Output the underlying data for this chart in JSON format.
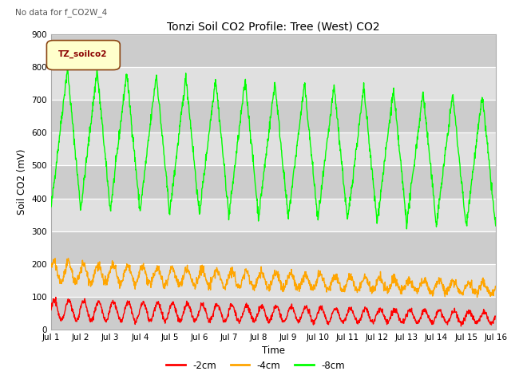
{
  "title": "Tonzi Soil CO2 Profile: Tree (West) CO2",
  "subtitle": "No data for f_CO2W_4",
  "xlabel": "Time",
  "ylabel": "Soil CO2 (mV)",
  "ylim": [
    0,
    900
  ],
  "xlim": [
    0,
    15
  ],
  "xtick_labels": [
    "Jul 1",
    "Jul 2",
    "Jul 3",
    "Jul 4",
    "Jul 5",
    "Jul 6",
    "Jul 7",
    "Jul 8",
    "Jul 9",
    "Jul 10",
    "Jul 11",
    "Jul 12",
    "Jul 13",
    "Jul 14",
    "Jul 15",
    "Jul 16"
  ],
  "ytick_values": [
    0,
    100,
    200,
    300,
    400,
    500,
    600,
    700,
    800,
    900
  ],
  "legend_label": "TZ_soilco2",
  "legend_entries": [
    "-2cm",
    "-4cm",
    "-8cm"
  ],
  "legend_colors": [
    "#ff0000",
    "#ffa500",
    "#00ff00"
  ],
  "color_8cm": "#00ff00",
  "color_4cm": "#ffa500",
  "color_2cm": "#ff0000",
  "n_days": 15,
  "pts_per_day": 96,
  "band_colors": [
    "#dcdcdc",
    "#e8e8e8"
  ],
  "ax_facecolor": "#e0e0e0"
}
